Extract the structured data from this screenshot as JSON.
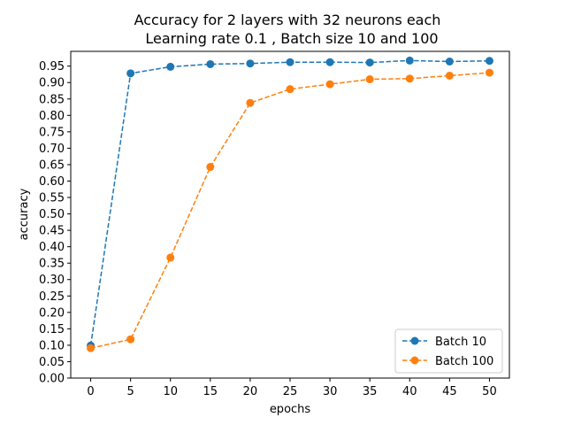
{
  "chart_data": {
    "type": "line",
    "title": "Accuracy for 2 layers with 32 neurons each",
    "subtitle": "Learning rate 0.1 , Batch size 10 and 100",
    "xlabel": "epochs",
    "ylabel": "accuracy",
    "x": [
      0,
      5,
      10,
      15,
      20,
      25,
      30,
      35,
      40,
      45,
      50
    ],
    "xticks": [
      "0",
      "5",
      "10",
      "15",
      "20",
      "25",
      "30",
      "35",
      "40",
      "45",
      "50"
    ],
    "yticks": [
      "0.00",
      "0.05",
      "0.10",
      "0.15",
      "0.20",
      "0.25",
      "0.30",
      "0.35",
      "0.40",
      "0.45",
      "0.50",
      "0.55",
      "0.60",
      "0.65",
      "0.70",
      "0.75",
      "0.80",
      "0.85",
      "0.90",
      "0.95"
    ],
    "xlim": [
      -2.5,
      52.5
    ],
    "ylim": [
      0.0,
      0.995
    ],
    "grid": false,
    "legend_position": "lower-right",
    "series": [
      {
        "name": "Batch 10",
        "color": "#1f77b4",
        "linestyle": "dashed",
        "marker": "circle",
        "values": [
          0.099,
          0.928,
          0.948,
          0.956,
          0.958,
          0.962,
          0.962,
          0.961,
          0.967,
          0.964,
          0.966
        ]
      },
      {
        "name": "Batch 100",
        "color": "#ff7f0e",
        "linestyle": "dashed",
        "marker": "circle",
        "values": [
          0.091,
          0.118,
          0.367,
          0.643,
          0.838,
          0.88,
          0.895,
          0.91,
          0.912,
          0.921,
          0.93
        ]
      }
    ]
  }
}
